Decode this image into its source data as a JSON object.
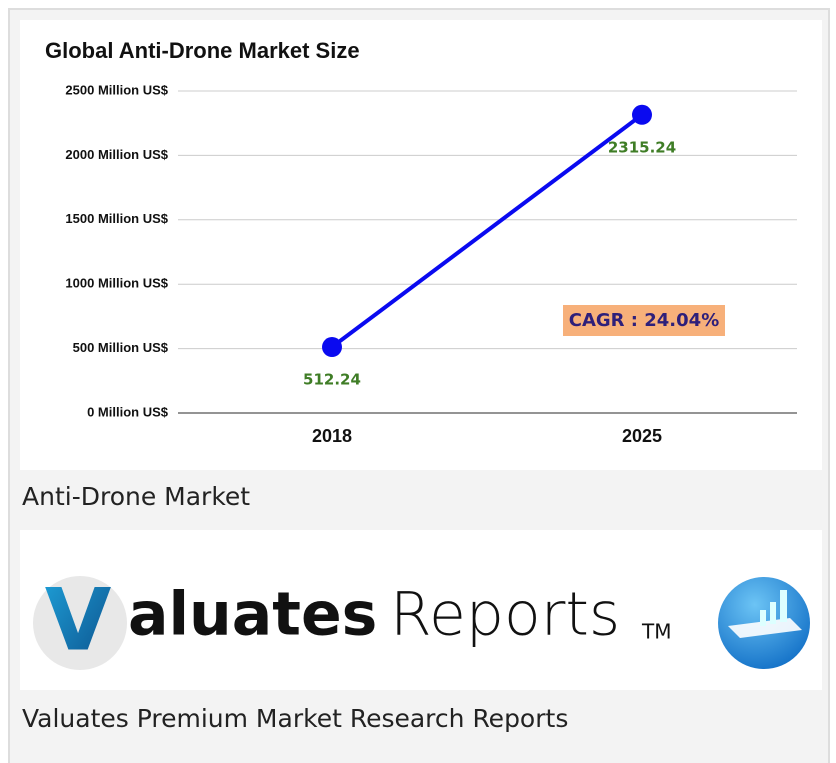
{
  "chart_data": {
    "type": "line",
    "title": "Global Anti-Drone Market Size",
    "categories": [
      "2018",
      "2025"
    ],
    "values": [
      512.24,
      2315.24
    ],
    "color": "#0a0af0",
    "ylim": [
      0,
      2500
    ],
    "yticks": [
      {
        "value": 0,
        "label": "0 Million US$"
      },
      {
        "value": 500,
        "label": "500 Million US$"
      },
      {
        "value": 1000,
        "label": "1000 Million US$"
      },
      {
        "value": 1500,
        "label": "1500 Million US$"
      },
      {
        "value": 2000,
        "label": "2000 Million US$"
      },
      {
        "value": 2500,
        "label": "2500 Million US$"
      }
    ],
    "grid": true,
    "annotation": "CAGR : 24.04%"
  },
  "caption1": "Anti-Drone Market",
  "logo": {
    "letter": "V",
    "text1": "aluates",
    "text2": "Reports",
    "mark": "TM"
  },
  "caption2": "Valuates Premium Market Research Reports"
}
